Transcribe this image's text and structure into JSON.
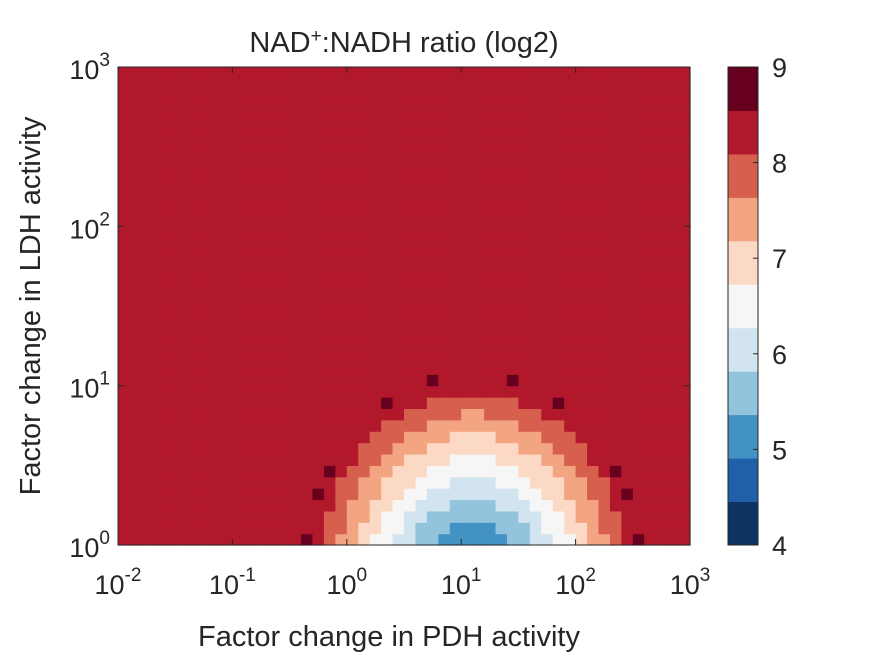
{
  "chart_data": {
    "type": "heatmap",
    "title": "NAD⁺:NADH ratio (log2)",
    "title_parts": {
      "base": "NAD",
      "sup": "+",
      "rest": ":NADH ratio (log2)"
    },
    "xlabel": "Factor change in PDH activity",
    "ylabel": "Factor change in LDH activity",
    "x_scale": "log",
    "y_scale": "log",
    "xlim": [
      0.01,
      1000
    ],
    "ylim": [
      1,
      1000
    ],
    "x_ticks": [
      {
        "base": "10",
        "exp": "-2"
      },
      {
        "base": "10",
        "exp": "-1"
      },
      {
        "base": "10",
        "exp": "0"
      },
      {
        "base": "10",
        "exp": "1"
      },
      {
        "base": "10",
        "exp": "2"
      },
      {
        "base": "10",
        "exp": "3"
      }
    ],
    "y_ticks": [
      {
        "base": "10",
        "exp": "0"
      },
      {
        "base": "10",
        "exp": "1"
      },
      {
        "base": "10",
        "exp": "2"
      },
      {
        "base": "10",
        "exp": "3"
      }
    ],
    "grid": false,
    "colorbar": {
      "range": [
        4,
        9
      ],
      "ticks": [
        "4",
        "5",
        "6",
        "7",
        "8",
        "9"
      ],
      "levels": [
        4.0,
        4.5,
        5.0,
        5.5,
        6.0,
        6.5,
        7.0,
        7.5,
        8.0,
        8.5
      ],
      "colors": [
        "#0d3463",
        "#2060a8",
        "#4392c4",
        "#93c4de",
        "#d2e4f0",
        "#f6f6f6",
        "#fcd9c4",
        "#f3a481",
        "#d6604d",
        "#b2182b"
      ],
      "top_color": "#67001f"
    },
    "model": {
      "description": "binned log2 ratio surface",
      "center_u": 1.1,
      "center_v": -0.25,
      "radius_u": 1.5,
      "radius_v": 1.33,
      "value_at_center": 4.0,
      "value_at_edge": 8.5,
      "saturation_value": 8.5,
      "boundary_spike_value": 9.0
    }
  }
}
